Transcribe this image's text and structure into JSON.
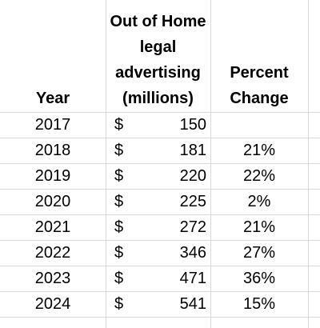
{
  "table": {
    "headers": {
      "year": "Year",
      "ooh_line1": "Out of Home",
      "ooh_line2": "legal",
      "ooh_line3": "advertising",
      "ooh_line4": "(millions)",
      "pct_line1": "Percent",
      "pct_line2": "Change"
    },
    "currency_symbol": "$",
    "rows": [
      {
        "year": "2017",
        "amount": "150",
        "pct": ""
      },
      {
        "year": "2018",
        "amount": "181",
        "pct": "21%"
      },
      {
        "year": "2019",
        "amount": "220",
        "pct": "22%"
      },
      {
        "year": "2020",
        "amount": "225",
        "pct": "2%"
      },
      {
        "year": "2021",
        "amount": "272",
        "pct": "21%"
      },
      {
        "year": "2022",
        "amount": "346",
        "pct": "27%"
      },
      {
        "year": "2023",
        "amount": "471",
        "pct": "36%"
      },
      {
        "year": "2024",
        "amount": "541",
        "pct": "15%"
      }
    ]
  }
}
